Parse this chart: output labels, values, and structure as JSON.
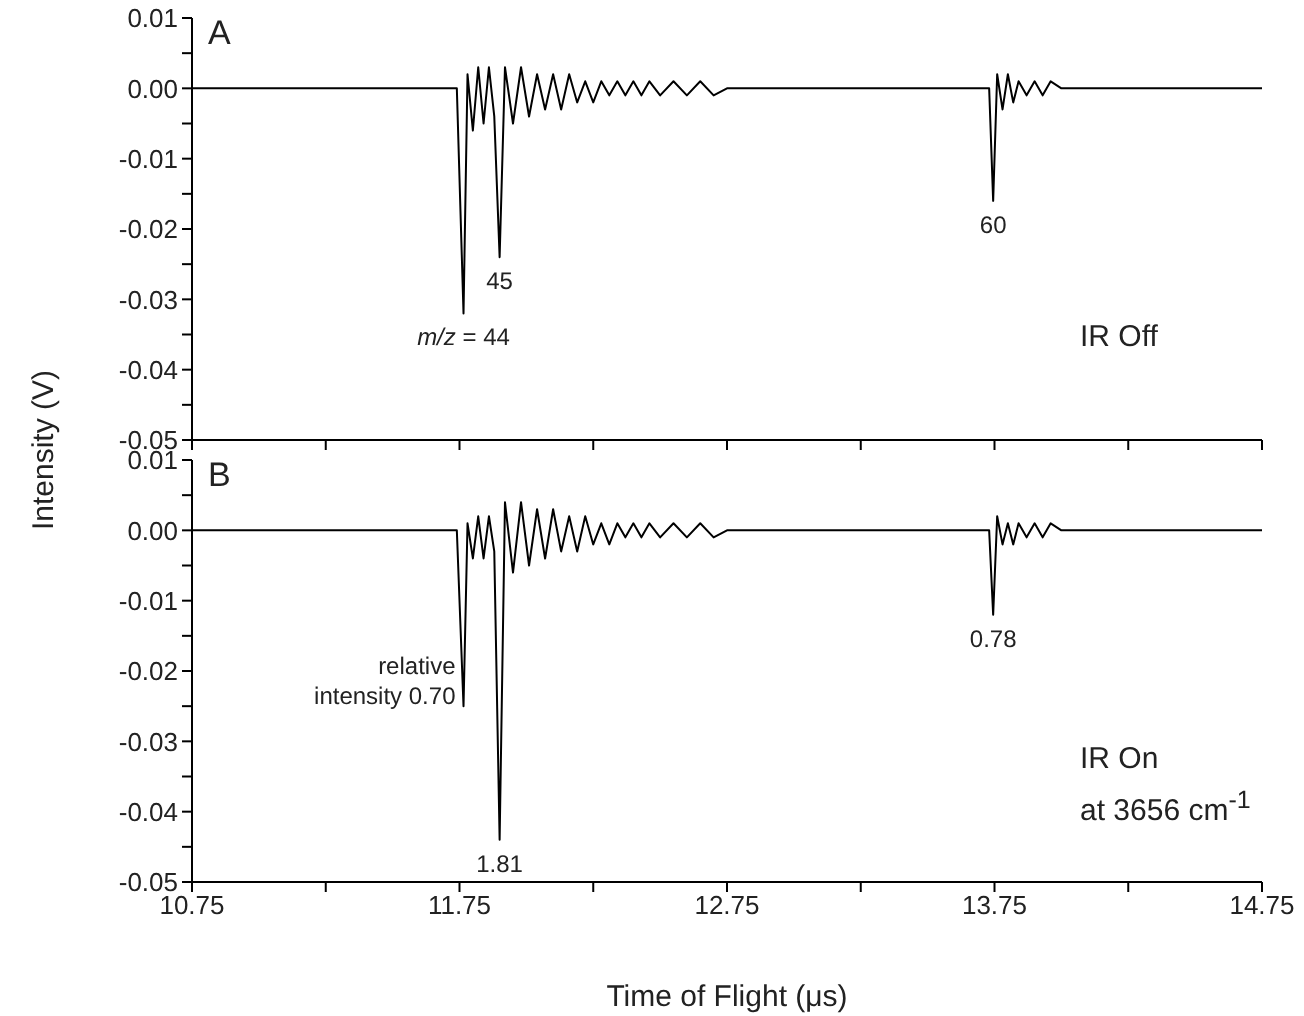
{
  "chart_data": [
    {
      "type": "line",
      "title": "A",
      "ylabel": "Intensity (V)",
      "tick_labels": "y",
      "xlim": [
        10.75,
        14.75
      ],
      "xticks": [
        10.75,
        11.25,
        11.75,
        12.25,
        12.75,
        13.25,
        13.75,
        14.25,
        14.75
      ],
      "ylim": [
        -0.05,
        0.01
      ],
      "yticks": [
        {
          "value": -0.05,
          "label": "-0.05"
        },
        {
          "value": -0.045,
          "label": null
        },
        {
          "value": -0.04,
          "label": "-0.04"
        },
        {
          "value": -0.035,
          "label": null
        },
        {
          "value": -0.03,
          "label": "-0.03"
        },
        {
          "value": -0.025,
          "label": null
        },
        {
          "value": -0.02,
          "label": "-0.02"
        },
        {
          "value": -0.015,
          "label": null
        },
        {
          "value": -0.01,
          "label": "-0.01"
        },
        {
          "value": -0.005,
          "label": null
        },
        {
          "value": 0,
          "label": "0.00"
        },
        {
          "value": 0.005,
          "label": null
        },
        {
          "value": 0.01,
          "label": "0.01"
        }
      ],
      "x": [
        10.75,
        11.74,
        11.765,
        11.78,
        11.8,
        11.82,
        11.84,
        11.86,
        11.88,
        11.9,
        11.92,
        11.95,
        11.98,
        12.01,
        12.04,
        12.07,
        12.1,
        12.13,
        12.16,
        12.19,
        12.22,
        12.25,
        12.28,
        12.31,
        12.34,
        12.37,
        12.4,
        12.43,
        12.46,
        12.5,
        12.55,
        12.6,
        12.65,
        12.7,
        12.75,
        13.73,
        13.745,
        13.76,
        13.78,
        13.8,
        13.82,
        13.84,
        13.87,
        13.9,
        13.93,
        13.96,
        14.0,
        14.75
      ],
      "series": [
        {
          "color": "#000000",
          "values": [
            0,
            0,
            -0.032,
            0.002,
            -0.006,
            0.003,
            -0.005,
            0.003,
            -0.004,
            -0.024,
            0.003,
            -0.005,
            0.003,
            -0.004,
            0.002,
            -0.003,
            0.002,
            -0.003,
            0.002,
            -0.002,
            0.001,
            -0.002,
            0.001,
            -0.001,
            0.001,
            -0.001,
            0.001,
            -0.001,
            0.001,
            -0.001,
            0.001,
            -0.001,
            0.001,
            -0.001,
            0,
            0,
            -0.016,
            0.002,
            -0.003,
            0.002,
            -0.002,
            0.001,
            -0.001,
            0.001,
            -0.001,
            0.001,
            0,
            0
          ]
        }
      ],
      "annotations": [
        {
          "text": "m/z = 44",
          "x": 11.765,
          "y": -0.032
        },
        {
          "text": "45",
          "x": 11.9,
          "y": -0.024
        },
        {
          "text": "60",
          "x": 13.745,
          "y": -0.016
        },
        "IR Off"
      ]
    },
    {
      "type": "line",
      "title": "B",
      "xlabel": "Time of Flight (μs)",
      "xlim": [
        10.75,
        14.75
      ],
      "xticks": [
        10.75,
        {
          "value": 11.25,
          "label": null
        },
        {
          "value": 11.75,
          "label": "11.75"
        },
        {
          "value": 12.25,
          "label": null
        },
        {
          "value": 12.75,
          "label": "12.75"
        },
        {
          "value": 13.25,
          "label": null
        },
        {
          "value": 13.75,
          "label": "13.75"
        },
        {
          "value": 14.25,
          "label": null
        },
        {
          "value": 14.75,
          "label": "14.75"
        }
      ],
      "ylim": [
        -0.05,
        0.01
      ],
      "yticks": [
        {
          "value": -0.05,
          "label": "-0.05"
        },
        {
          "value": -0.045,
          "label": null
        },
        {
          "value": -0.04,
          "label": "-0.04"
        },
        {
          "value": -0.035,
          "label": null
        },
        {
          "value": -0.03,
          "label": "-0.03"
        },
        {
          "value": -0.025,
          "label": null
        },
        {
          "value": -0.02,
          "label": "-0.02"
        },
        {
          "value": -0.015,
          "label": null
        },
        {
          "value": -0.01,
          "label": "-0.01"
        },
        {
          "value": -0.005,
          "label": null
        },
        {
          "value": 0,
          "label": "0.00"
        },
        {
          "value": 0.005,
          "label": null
        },
        {
          "value": 0.01,
          "label": "0.01"
        }
      ],
      "x": [
        10.75,
        11.74,
        11.765,
        11.78,
        11.8,
        11.82,
        11.84,
        11.86,
        11.88,
        11.9,
        11.92,
        11.95,
        11.98,
        12.01,
        12.04,
        12.07,
        12.1,
        12.13,
        12.16,
        12.19,
        12.22,
        12.25,
        12.28,
        12.31,
        12.34,
        12.37,
        12.4,
        12.43,
        12.46,
        12.5,
        12.55,
        12.6,
        12.65,
        12.7,
        12.75,
        13.73,
        13.745,
        13.76,
        13.78,
        13.8,
        13.82,
        13.84,
        13.87,
        13.9,
        13.93,
        13.96,
        14.0,
        14.75
      ],
      "series": [
        {
          "color": "#000000",
          "values": [
            0,
            0,
            -0.025,
            0.001,
            -0.004,
            0.002,
            -0.004,
            0.002,
            -0.003,
            -0.044,
            0.004,
            -0.006,
            0.004,
            -0.005,
            0.003,
            -0.004,
            0.003,
            -0.003,
            0.002,
            -0.003,
            0.002,
            -0.002,
            0.001,
            -0.002,
            0.001,
            -0.001,
            0.001,
            -0.001,
            0.001,
            -0.001,
            0.001,
            -0.001,
            0.001,
            -0.001,
            0,
            0,
            -0.012,
            0.002,
            -0.002,
            0.001,
            -0.002,
            0.001,
            -0.001,
            0.001,
            -0.001,
            0.001,
            0,
            0
          ]
        }
      ],
      "annotations": [
        {
          "text": "relative\nintensity 0.70",
          "x": 11.765,
          "y": -0.025
        },
        {
          "text": "1.81",
          "x": 11.9,
          "y": -0.044
        },
        {
          "text": "0.78",
          "x": 13.745,
          "y": -0.012
        },
        "IR On\nat 3656 cm$^{-1}$"
      ]
    }
  ]
}
